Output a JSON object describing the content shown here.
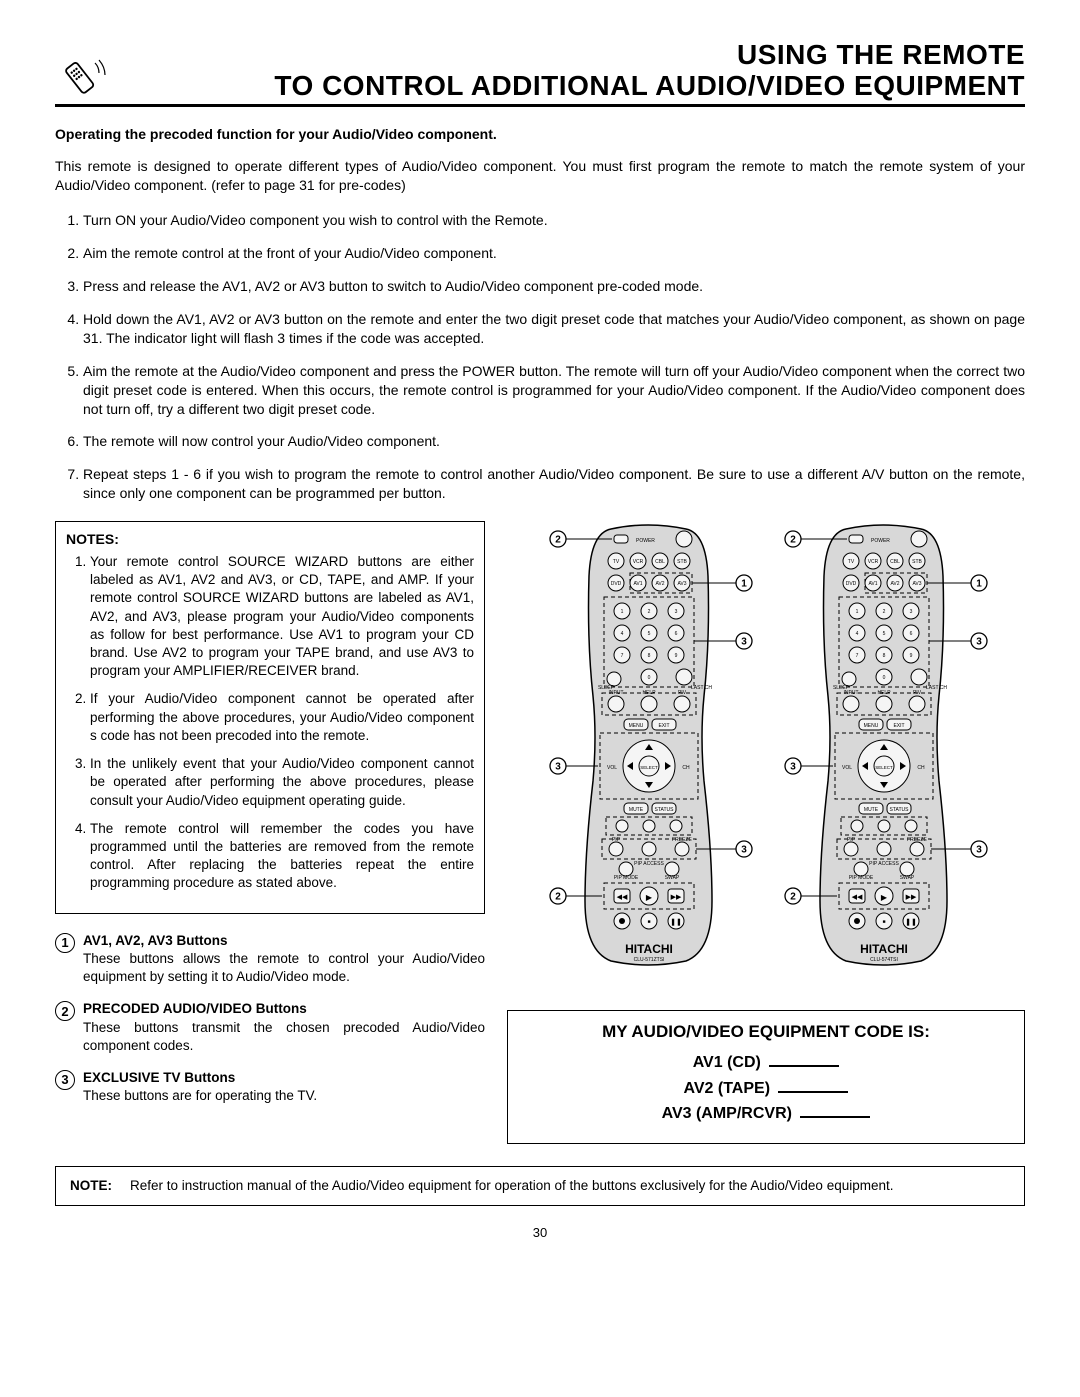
{
  "header": {
    "title_line1": "USING THE REMOTE",
    "title_line2": "TO CONTROL ADDITIONAL AUDIO/VIDEO EQUIPMENT"
  },
  "subheading": "Operating the precoded function for your Audio/Video component.",
  "intro": "This remote is designed to operate different types of Audio/Video component.  You must first program the remote to match the remote system of your Audio/Video component. (refer to page 31 for pre-codes)",
  "steps": [
    "Turn ON your Audio/Video component you wish to control with the Remote.",
    "Aim the remote control at the front of your Audio/Video component.",
    "Press and release the AV1, AV2 or AV3 button to switch to Audio/Video component pre-coded mode.",
    "Hold down the AV1, AV2 or AV3 button on the remote and enter the two digit preset code that matches your Audio/Video component, as shown on page 31.  The indicator light will flash 3 times if the code was accepted.",
    "Aim the remote at the Audio/Video component and press the POWER button.  The remote will turn off your Audio/Video component when the correct two digit preset code is entered.  When this occurs, the remote control is programmed for your Audio/Video component.  If the Audio/Video component does not turn off, try a different two digit preset code.",
    "The remote will now control your Audio/Video component.",
    "Repeat steps 1 - 6 if you wish to program the remote to control another Audio/Video component.  Be sure to use a different A/V button on the remote, since only one component can be programmed per button."
  ],
  "notes": {
    "title": "NOTES:",
    "items": [
      "Your remote control  SOURCE WIZARD  buttons are either labeled as  AV1, AV2 and AV3,  or   CD, TAPE, and   AMP.    If  your  remote  control  SOURCE WIZARD buttons are labeled as  AV1, AV2, and AV3,  please program your Audio/Video components as follow for best performance.  Use  AV1  to program your CD brand.  Use  AV2  to program your TAPE brand, and use  AV3  to program your AMPLIFIER/RECEIVER brand.",
      "If your Audio/Video component cannot be operated after performing the above procedures, your Audio/Video component s code has not been precoded into the remote.",
      "In the unlikely event that your Audio/Video component cannot be operated after performing the above procedures, please consult your Audio/Video equipment operating guide.",
      "The remote control will remember the codes you have programmed until the batteries are removed from the remote control.  After replacing the batteries repeat the entire programming procedure as stated above."
    ]
  },
  "callouts": [
    {
      "num": "1",
      "title": "AV1, AV2, AV3 Buttons",
      "text": "These buttons allows the remote to control your Audio/Video equipment by setting it to Audio/Video mode."
    },
    {
      "num": "2",
      "title": "PRECODED AUDIO/VIDEO Buttons",
      "text": "These buttons transmit the chosen precoded Audio/Video component codes."
    },
    {
      "num": "3",
      "title": "EXCLUSIVE TV Buttons",
      "text": "These buttons are for operating the TV."
    }
  ],
  "code_box": {
    "title": "MY AUDIO/VIDEO EQUIPMENT CODE IS:",
    "lines": [
      "AV1 (CD)",
      "AV2 (TAPE)",
      "AV3 (AMP/RCVR)"
    ]
  },
  "footer_note": {
    "label": "NOTE:",
    "text": "Refer to instruction manual of the Audio/Video equipment for operation of the buttons exclusively for the Audio/Video equipment."
  },
  "page_number": "30",
  "remote_brand": "HITACHI",
  "remote_model_left": "CLU-571ZTSI",
  "remote_model_right": "CLU-574TSI",
  "diagram": {
    "body_fill": "#d8d8d8",
    "btn_fill": "#f5f5f5",
    "outline": "#000000",
    "dash": "4 3",
    "label_font": 5
  }
}
